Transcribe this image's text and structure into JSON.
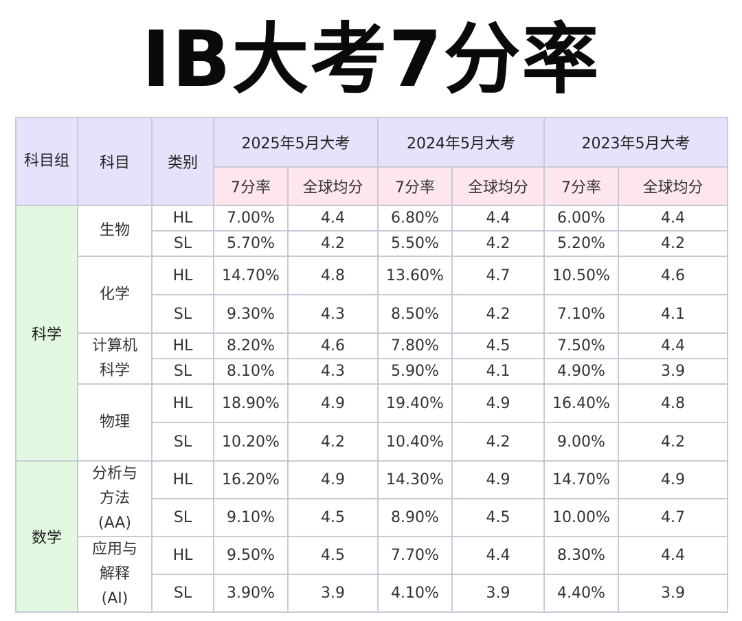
{
  "title": "IB大考7分率",
  "header": {
    "subject_group": "科目组",
    "subject": "科目",
    "category": "类别",
    "years": [
      "2025年5月大考",
      "2024年5月大考",
      "2023年5月大考"
    ],
    "rate": "7分率",
    "avg": "全球均分"
  },
  "groups": {
    "science": "科学",
    "math": "数学"
  },
  "subjects": {
    "biology": "生物",
    "chemistry": "化学",
    "cs": "计算机科学",
    "physics": "物理",
    "aa": "分析与方法(AA)",
    "ai": "应用与解释(AI)"
  },
  "rows": [
    {
      "level": "HL",
      "v": [
        "7.00%",
        "4.4",
        "6.80%",
        "4.4",
        "6.00%",
        "4.4"
      ]
    },
    {
      "level": "SL",
      "v": [
        "5.70%",
        "4.2",
        "5.50%",
        "4.2",
        "5.20%",
        "4.2"
      ]
    },
    {
      "level": "HL",
      "v": [
        "14.70%",
        "4.8",
        "13.60%",
        "4.7",
        "10.50%",
        "4.6"
      ]
    },
    {
      "level": "SL",
      "v": [
        "9.30%",
        "4.3",
        "8.50%",
        "4.2",
        "7.10%",
        "4.1"
      ]
    },
    {
      "level": "HL",
      "v": [
        "8.20%",
        "4.6",
        "7.80%",
        "4.5",
        "7.50%",
        "4.4"
      ]
    },
    {
      "level": "SL",
      "v": [
        "8.10%",
        "4.3",
        "5.90%",
        "4.1",
        "4.90%",
        "3.9"
      ]
    },
    {
      "level": "HL",
      "v": [
        "18.90%",
        "4.9",
        "19.40%",
        "4.9",
        "16.40%",
        "4.8"
      ]
    },
    {
      "level": "SL",
      "v": [
        "10.20%",
        "4.2",
        "10.40%",
        "4.2",
        "9.00%",
        "4.2"
      ]
    },
    {
      "level": "HL",
      "v": [
        "16.20%",
        "4.9",
        "14.30%",
        "4.9",
        "14.70%",
        "4.9"
      ]
    },
    {
      "level": "SL",
      "v": [
        "9.10%",
        "4.5",
        "8.90%",
        "4.5",
        "10.00%",
        "4.7"
      ]
    },
    {
      "level": "HL",
      "v": [
        "9.50%",
        "4.5",
        "7.70%",
        "4.4",
        "8.30%",
        "4.4"
      ]
    },
    {
      "level": "SL",
      "v": [
        "3.90%",
        "3.9",
        "4.10%",
        "3.9",
        "4.40%",
        "3.9"
      ]
    }
  ]
}
